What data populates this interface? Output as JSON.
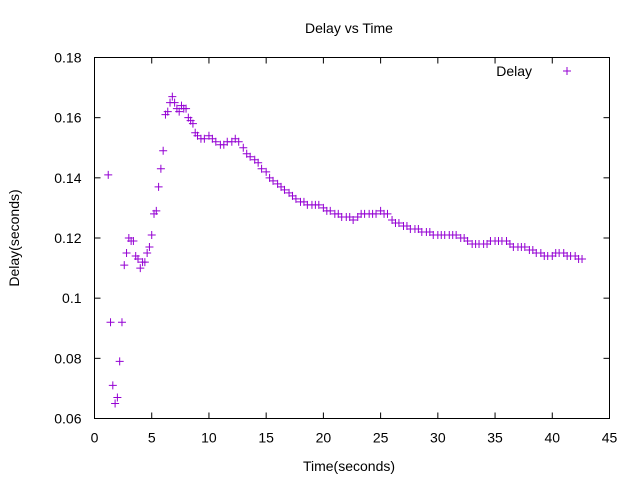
{
  "chart_data": {
    "type": "scatter",
    "title": "Delay vs Time",
    "xlabel": "Time(seconds)",
    "ylabel": "Delay(seconds)",
    "xlim": [
      0,
      45
    ],
    "ylim": [
      0.06,
      0.18
    ],
    "x_ticks": [
      "0",
      "5",
      "10",
      "15",
      "20",
      "25",
      "30",
      "35",
      "40",
      "45"
    ],
    "y_ticks": [
      "0.06",
      "0.08",
      "0.1",
      "0.12",
      "0.14",
      "0.16",
      "0.18"
    ],
    "grid": false,
    "legend_position": "top-right",
    "marker": "+",
    "series": [
      {
        "name": "Delay",
        "color": "#9400d3",
        "points": [
          [
            1.2,
            0.141
          ],
          [
            1.4,
            0.092
          ],
          [
            1.6,
            0.071
          ],
          [
            1.8,
            0.065
          ],
          [
            2.0,
            0.067
          ],
          [
            2.2,
            0.079
          ],
          [
            2.4,
            0.092
          ],
          [
            2.6,
            0.111
          ],
          [
            2.8,
            0.115
          ],
          [
            3.0,
            0.12
          ],
          [
            3.2,
            0.119
          ],
          [
            3.4,
            0.119
          ],
          [
            3.6,
            0.114
          ],
          [
            3.8,
            0.113
          ],
          [
            4.0,
            0.11
          ],
          [
            4.2,
            0.112
          ],
          [
            4.4,
            0.112
          ],
          [
            4.6,
            0.115
          ],
          [
            4.8,
            0.117
          ],
          [
            5.0,
            0.121
          ],
          [
            5.2,
            0.128
          ],
          [
            5.4,
            0.129
          ],
          [
            5.6,
            0.137
          ],
          [
            5.8,
            0.143
          ],
          [
            6.0,
            0.149
          ],
          [
            6.2,
            0.161
          ],
          [
            6.4,
            0.162
          ],
          [
            6.6,
            0.165
          ],
          [
            6.8,
            0.167
          ],
          [
            7.0,
            0.165
          ],
          [
            7.2,
            0.163
          ],
          [
            7.4,
            0.162
          ],
          [
            7.6,
            0.164
          ],
          [
            7.8,
            0.163
          ],
          [
            8.0,
            0.163
          ],
          [
            8.2,
            0.16
          ],
          [
            8.4,
            0.159
          ],
          [
            8.6,
            0.158
          ],
          [
            8.8,
            0.155
          ],
          [
            9.0,
            0.154
          ],
          [
            9.3,
            0.153
          ],
          [
            9.6,
            0.153
          ],
          [
            10.0,
            0.154
          ],
          [
            10.3,
            0.153
          ],
          [
            10.6,
            0.152
          ],
          [
            11.0,
            0.151
          ],
          [
            11.3,
            0.151
          ],
          [
            11.6,
            0.152
          ],
          [
            12.0,
            0.152
          ],
          [
            12.3,
            0.153
          ],
          [
            12.6,
            0.152
          ],
          [
            13.0,
            0.15
          ],
          [
            13.3,
            0.148
          ],
          [
            13.6,
            0.147
          ],
          [
            14.0,
            0.146
          ],
          [
            14.3,
            0.145
          ],
          [
            14.6,
            0.143
          ],
          [
            15.0,
            0.142
          ],
          [
            15.3,
            0.14
          ],
          [
            15.6,
            0.139
          ],
          [
            16.0,
            0.138
          ],
          [
            16.3,
            0.137
          ],
          [
            16.6,
            0.136
          ],
          [
            17.0,
            0.135
          ],
          [
            17.3,
            0.134
          ],
          [
            17.6,
            0.133
          ],
          [
            18.0,
            0.132
          ],
          [
            18.3,
            0.132
          ],
          [
            18.6,
            0.131
          ],
          [
            19.0,
            0.131
          ],
          [
            19.3,
            0.131
          ],
          [
            19.6,
            0.131
          ],
          [
            20.0,
            0.13
          ],
          [
            20.3,
            0.129
          ],
          [
            20.6,
            0.129
          ],
          [
            21.0,
            0.128
          ],
          [
            21.3,
            0.128
          ],
          [
            21.6,
            0.127
          ],
          [
            22.0,
            0.127
          ],
          [
            22.3,
            0.127
          ],
          [
            22.6,
            0.126
          ],
          [
            23.0,
            0.127
          ],
          [
            23.3,
            0.128
          ],
          [
            23.6,
            0.128
          ],
          [
            24.0,
            0.128
          ],
          [
            24.3,
            0.128
          ],
          [
            24.6,
            0.128
          ],
          [
            25.0,
            0.129
          ],
          [
            25.3,
            0.128
          ],
          [
            25.6,
            0.128
          ],
          [
            26.0,
            0.126
          ],
          [
            26.3,
            0.125
          ],
          [
            26.6,
            0.125
          ],
          [
            27.0,
            0.124
          ],
          [
            27.3,
            0.124
          ],
          [
            27.6,
            0.123
          ],
          [
            28.0,
            0.123
          ],
          [
            28.3,
            0.123
          ],
          [
            28.6,
            0.122
          ],
          [
            29.0,
            0.122
          ],
          [
            29.3,
            0.122
          ],
          [
            29.6,
            0.121
          ],
          [
            30.0,
            0.121
          ],
          [
            30.3,
            0.121
          ],
          [
            30.6,
            0.121
          ],
          [
            31.0,
            0.121
          ],
          [
            31.3,
            0.121
          ],
          [
            31.6,
            0.121
          ],
          [
            32.0,
            0.12
          ],
          [
            32.3,
            0.12
          ],
          [
            32.6,
            0.119
          ],
          [
            33.0,
            0.118
          ],
          [
            33.3,
            0.118
          ],
          [
            33.6,
            0.118
          ],
          [
            34.0,
            0.118
          ],
          [
            34.3,
            0.118
          ],
          [
            34.6,
            0.119
          ],
          [
            35.0,
            0.119
          ],
          [
            35.3,
            0.119
          ],
          [
            35.6,
            0.119
          ],
          [
            36.0,
            0.119
          ],
          [
            36.3,
            0.118
          ],
          [
            36.6,
            0.117
          ],
          [
            37.0,
            0.117
          ],
          [
            37.3,
            0.117
          ],
          [
            37.6,
            0.117
          ],
          [
            38.0,
            0.116
          ],
          [
            38.3,
            0.116
          ],
          [
            38.6,
            0.115
          ],
          [
            39.0,
            0.115
          ],
          [
            39.3,
            0.114
          ],
          [
            39.6,
            0.114
          ],
          [
            40.0,
            0.114
          ],
          [
            40.3,
            0.115
          ],
          [
            40.6,
            0.115
          ],
          [
            41.0,
            0.115
          ],
          [
            41.3,
            0.114
          ],
          [
            41.6,
            0.114
          ],
          [
            42.0,
            0.114
          ],
          [
            42.3,
            0.113
          ],
          [
            42.6,
            0.113
          ]
        ]
      }
    ]
  }
}
